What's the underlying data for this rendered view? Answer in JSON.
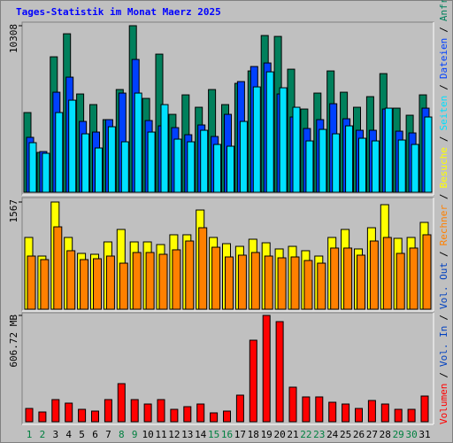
{
  "title": "Tages-Statistik im Monat Maerz 2025",
  "separator": "/",
  "chart_data": [
    {
      "type": "bar",
      "ylim": [
        0,
        10308
      ],
      "yticks": [
        10308
      ],
      "series": [
        {
          "name": "Anfragen",
          "color": "#00805c",
          "values": [
            4932,
            2466,
            8384,
            9809,
            6083,
            5425,
            4494,
            6357,
            10308,
            5809,
            8549,
            4822,
            6028,
            5261,
            6357,
            5425,
            6740,
            7508,
            9700,
            9645,
            7617,
            5151,
            6138,
            7508,
            6192,
            5261,
            5918,
            7343,
            5206,
            4768,
            6028
          ]
        },
        {
          "name": "Dateien",
          "color": "#0040ff",
          "values": [
            3398,
            2521,
            6192,
            7124,
            4384,
            3726,
            4494,
            6138,
            8220,
            4439,
            4110,
            4000,
            3562,
            4165,
            3452,
            4822,
            6850,
            7782,
            8001,
            6083,
            4658,
            3946,
            4494,
            5480,
            4548,
            3836,
            3836,
            5151,
            3781,
            3672,
            5206
          ]
        },
        {
          "name": "Seiten",
          "color": "#00e0ff",
          "values": [
            3069,
            2411,
            4932,
            5699,
            3617,
            2740,
            4055,
            3124,
            6138,
            3726,
            5425,
            3288,
            3124,
            3836,
            2959,
            2850,
            4384,
            6521,
            7453,
            6466,
            5261,
            3178,
            3891,
            3617,
            4110,
            3343,
            3178,
            5206,
            3233,
            2959,
            4658
          ]
        }
      ]
    },
    {
      "type": "bar",
      "ylim": [
        0,
        1567
      ],
      "yticks": [
        1567
      ],
      "series": [
        {
          "name": "Besuche",
          "color": "#ffff00",
          "values": [
            1049,
            777,
            1567,
            1049,
            816,
            803,
            984,
            1166,
            984,
            984,
            945,
            1088,
            1088,
            1450,
            1049,
            958,
            919,
            1023,
            971,
            881,
            919,
            855,
            777,
            1049,
            1166,
            881,
            1191,
            1528,
            1036,
            1049,
            1269
          ]
        },
        {
          "name": "Rechner",
          "color": "#ff8000",
          "values": [
            777,
            725,
            1204,
            855,
            725,
            738,
            777,
            673,
            829,
            829,
            803,
            868,
            997,
            1191,
            906,
            764,
            790,
            829,
            777,
            751,
            764,
            712,
            673,
            894,
            894,
            790,
            997,
            1049,
            816,
            894,
            1088
          ]
        }
      ]
    },
    {
      "type": "bar",
      "ylim": [
        0,
        606.72
      ],
      "yticks": [
        {
          "value": 606.72,
          "label": "606.72 MB"
        }
      ],
      "categories": [
        "1",
        "2",
        "3",
        "4",
        "5",
        "6",
        "7",
        "8",
        "9",
        "10",
        "11",
        "12",
        "13",
        "14",
        "15",
        "16",
        "17",
        "18",
        "19",
        "20",
        "21",
        "22",
        "23",
        "24",
        "25",
        "26",
        "27",
        "28",
        "29",
        "30",
        "31"
      ],
      "category_colors": [
        "#008040",
        "#008040",
        "#000000",
        "#000000",
        "#000000",
        "#000000",
        "#000000",
        "#008040",
        "#008040",
        "#000000",
        "#000000",
        "#000000",
        "#000000",
        "#000000",
        "#008040",
        "#008040",
        "#000000",
        "#000000",
        "#000000",
        "#000000",
        "#000000",
        "#008040",
        "#008040",
        "#000000",
        "#000000",
        "#000000",
        "#000000",
        "#000000",
        "#008040",
        "#008040",
        "#000000"
      ],
      "series": [
        {
          "name": "Volumen",
          "color": "#ff0000",
          "values": [
            75.8,
            55.6,
            126.4,
            106.2,
            70.8,
            60.7,
            126.4,
            217.4,
            126.4,
            101.1,
            126.4,
            70.8,
            86.0,
            101.1,
            50.6,
            60.7,
            151.7,
            465.2,
            606.72,
            571.3,
            197.2,
            141.6,
            141.6,
            111.2,
            101.1,
            75.8,
            121.3,
            101.1,
            70.8,
            70.8,
            146.6
          ]
        }
      ],
      "legend_extra": [
        {
          "name": "Vol. In",
          "color": "#0040c0"
        },
        {
          "name": "Vol. Out",
          "color": "#0040c0"
        }
      ]
    }
  ]
}
